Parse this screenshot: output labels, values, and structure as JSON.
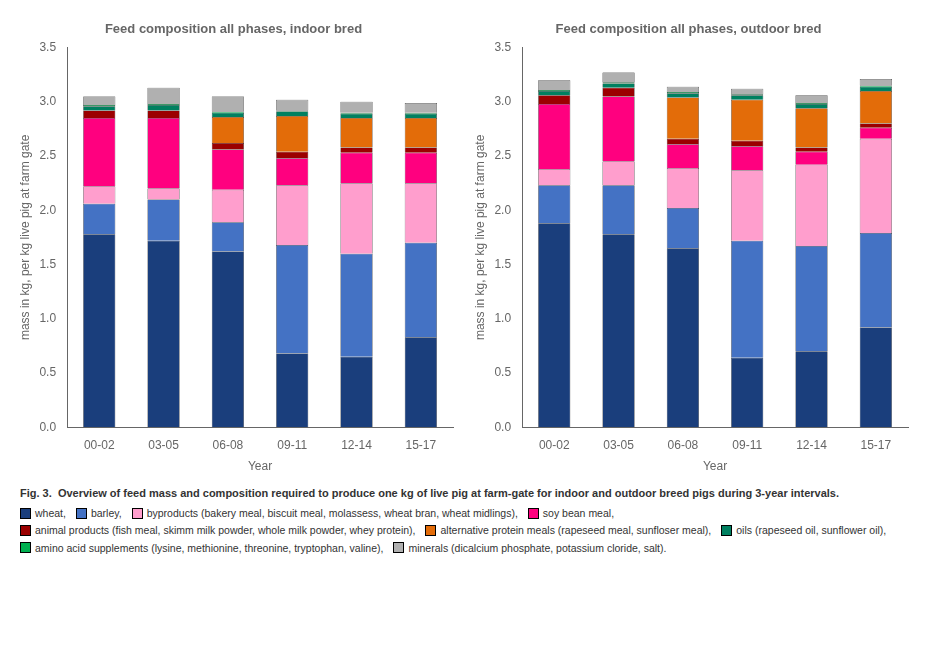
{
  "chart_data": [
    {
      "type": "bar",
      "stacked": true,
      "grid": false,
      "title": "Feed composition all phases, indoor bred",
      "xlabel": "Year",
      "ylabel": "mass in kg, per kg live pig at farm gate",
      "annotations": [
        "Fig. 3.  Overview of feed mass and composition required to produce one kg of live pig at farm-gate for indoor and outdoor breed pigs during 3-year intervals."
      ],
      "categories": [
        "00-02",
        "03-05",
        "06-08",
        "09-11",
        "12-14",
        "15-17"
      ],
      "ylim": [
        0,
        3.5
      ],
      "yticks": [
        {
          "value": 0,
          "label": "0.0"
        },
        0.5,
        {
          "value": 1.0,
          "label": "1.0"
        },
        1.5,
        {
          "value": 2.0,
          "label": "2.0"
        },
        2.5,
        {
          "value": 3.0,
          "label": "3.0"
        },
        3.5
      ],
      "series": [
        {
          "name": "wheat,",
          "color": "#1a3e7c",
          "values": [
            1.78,
            1.72,
            1.62,
            0.68,
            0.65,
            0.83
          ]
        },
        {
          "name": "barley,",
          "color": "#4472c4",
          "values": [
            0.28,
            0.38,
            0.27,
            1.0,
            0.95,
            0.87
          ]
        },
        {
          "name": "byproducts (bakery meal, biscuit meal, molassess, wheat bran, wheat midlings),",
          "color": "#ff9ecd",
          "values": [
            0.16,
            0.1,
            0.3,
            0.55,
            0.65,
            0.55
          ]
        },
        {
          "name": "soy bean meal,",
          "color": "#ff007f",
          "values": [
            0.63,
            0.65,
            0.37,
            0.25,
            0.28,
            0.28
          ]
        },
        {
          "name": "animal products (fish meal, skimm milk powder, whole milk powder, whey protein),",
          "color": "#9b0000",
          "values": [
            0.07,
            0.07,
            0.06,
            0.06,
            0.05,
            0.05
          ]
        },
        {
          "name": "alternative protein meals (rapeseed meal, sunfloser meal),",
          "color": "#e36c09",
          "values": [
            0.0,
            0.0,
            0.24,
            0.33,
            0.27,
            0.27
          ]
        },
        {
          "name": "oils (rapeseed oil, sunflower oil),",
          "color": "#008060",
          "values": [
            0.04,
            0.05,
            0.04,
            0.04,
            0.04,
            0.04
          ]
        },
        {
          "name": "amino acid supplements (lysine, methionine, threonine, tryptophan, valine),",
          "color": "#00b050",
          "values": [
            0.01,
            0.01,
            0.01,
            0.01,
            0.01,
            0.01
          ]
        },
        {
          "name": "minerals (dicalcium phosphate, potassium cloride, salt).",
          "color": "#b0b0b0",
          "values": [
            0.08,
            0.15,
            0.14,
            0.1,
            0.1,
            0.09
          ]
        }
      ]
    },
    {
      "type": "bar",
      "stacked": true,
      "grid": false,
      "title": "Feed composition all phases, outdoor bred",
      "xlabel": "Year",
      "ylabel": "mass in kg, per kg live pig at farm gate",
      "categories": [
        "00-02",
        "03-05",
        "06-08",
        "09-11",
        "12-14",
        "15-17"
      ],
      "ylim": [
        0,
        3.5
      ],
      "yticks": [
        {
          "value": 0,
          "label": "0.0"
        },
        0.5,
        {
          "value": 1.0,
          "label": "1.0"
        },
        1.5,
        {
          "value": 2.0,
          "label": "2.0"
        },
        2.5,
        {
          "value": 3.0,
          "label": "3.0"
        },
        3.5
      ],
      "series": [
        {
          "name": "wheat,",
          "color": "#1a3e7c",
          "values": [
            1.88,
            1.78,
            1.65,
            0.64,
            0.7,
            0.92
          ]
        },
        {
          "name": "barley,",
          "color": "#4472c4",
          "values": [
            0.35,
            0.45,
            0.37,
            1.08,
            0.97,
            0.87
          ]
        },
        {
          "name": "byproducts (bakery meal, biscuit meal, molassess, wheat bran, wheat midlings),",
          "color": "#ff9ecd",
          "values": [
            0.15,
            0.22,
            0.37,
            0.65,
            0.75,
            0.87
          ]
        },
        {
          "name": "soy bean meal,",
          "color": "#ff007f",
          "values": [
            0.6,
            0.6,
            0.22,
            0.22,
            0.12,
            0.1
          ]
        },
        {
          "name": "animal products (fish meal, skimm milk powder, whole milk powder, whey protein),",
          "color": "#9b0000",
          "values": [
            0.08,
            0.08,
            0.05,
            0.05,
            0.04,
            0.04
          ]
        },
        {
          "name": "alternative protein meals (rapeseed meal, sunfloser meal),",
          "color": "#e36c09",
          "values": [
            0.0,
            0.0,
            0.38,
            0.38,
            0.36,
            0.3
          ]
        },
        {
          "name": "oils (rapeseed oil, sunflower oil),",
          "color": "#008060",
          "values": [
            0.04,
            0.04,
            0.04,
            0.04,
            0.04,
            0.04
          ]
        },
        {
          "name": "amino acid supplements (lysine, methionine, threonine, tryptophan, valine),",
          "color": "#00b050",
          "values": [
            0.01,
            0.01,
            0.01,
            0.01,
            0.01,
            0.01
          ]
        },
        {
          "name": "minerals (dicalcium phosphate, potassium cloride, salt).",
          "color": "#b0b0b0",
          "values": [
            0.09,
            0.09,
            0.05,
            0.05,
            0.07,
            0.06
          ]
        }
      ]
    }
  ]
}
